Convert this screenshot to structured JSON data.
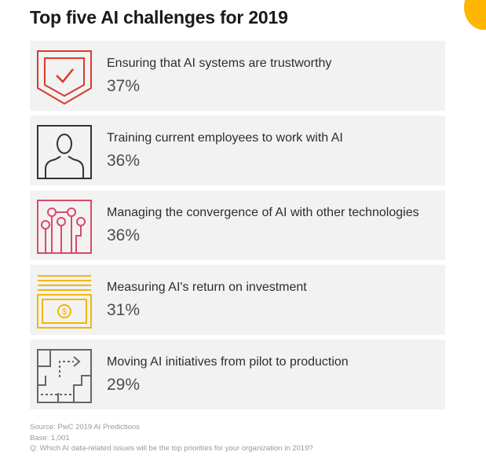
{
  "title": "Top five AI challenges for 2019",
  "colors": {
    "accent": "#ffb600",
    "row_bg": "#f2f2f2",
    "trust_icon": "#d93a2b",
    "employees_icon": "#333333",
    "convergence_icon": "#d94a6a",
    "roi_icon": "#f2b705",
    "pilot_icon": "#666666"
  },
  "chart_data": {
    "type": "table",
    "title": "Top five AI challenges for 2019",
    "categories": [
      "Ensuring that AI systems are trustworthy",
      "Training current employees to work with AI",
      "Managing the convergence of AI with other technologies",
      "Measuring AI's return on investment",
      "Moving AI initiatives from pilot to production"
    ],
    "values": [
      37,
      36,
      36,
      31,
      29
    ],
    "unit": "%"
  },
  "items": [
    {
      "label": "Ensuring that AI systems are trustworthy",
      "value": "37%",
      "icon": "shield-check-icon"
    },
    {
      "label": "Training current employees to work with AI",
      "value": "36%",
      "icon": "person-icon"
    },
    {
      "label": "Managing the convergence of AI with other technologies",
      "value": "36%",
      "icon": "circuit-icon"
    },
    {
      "label": "Measuring AI's return on investment",
      "value": "31%",
      "icon": "money-icon"
    },
    {
      "label": "Moving AI initiatives from pilot to production",
      "value": "29%",
      "icon": "path-icon"
    }
  ],
  "footnotes": {
    "source": "Source: PwC 2019 AI Predictions",
    "base": "Base: 1,001",
    "question": "Q: Which AI data-related issues will be the top priorities for your organization in 2019?"
  }
}
